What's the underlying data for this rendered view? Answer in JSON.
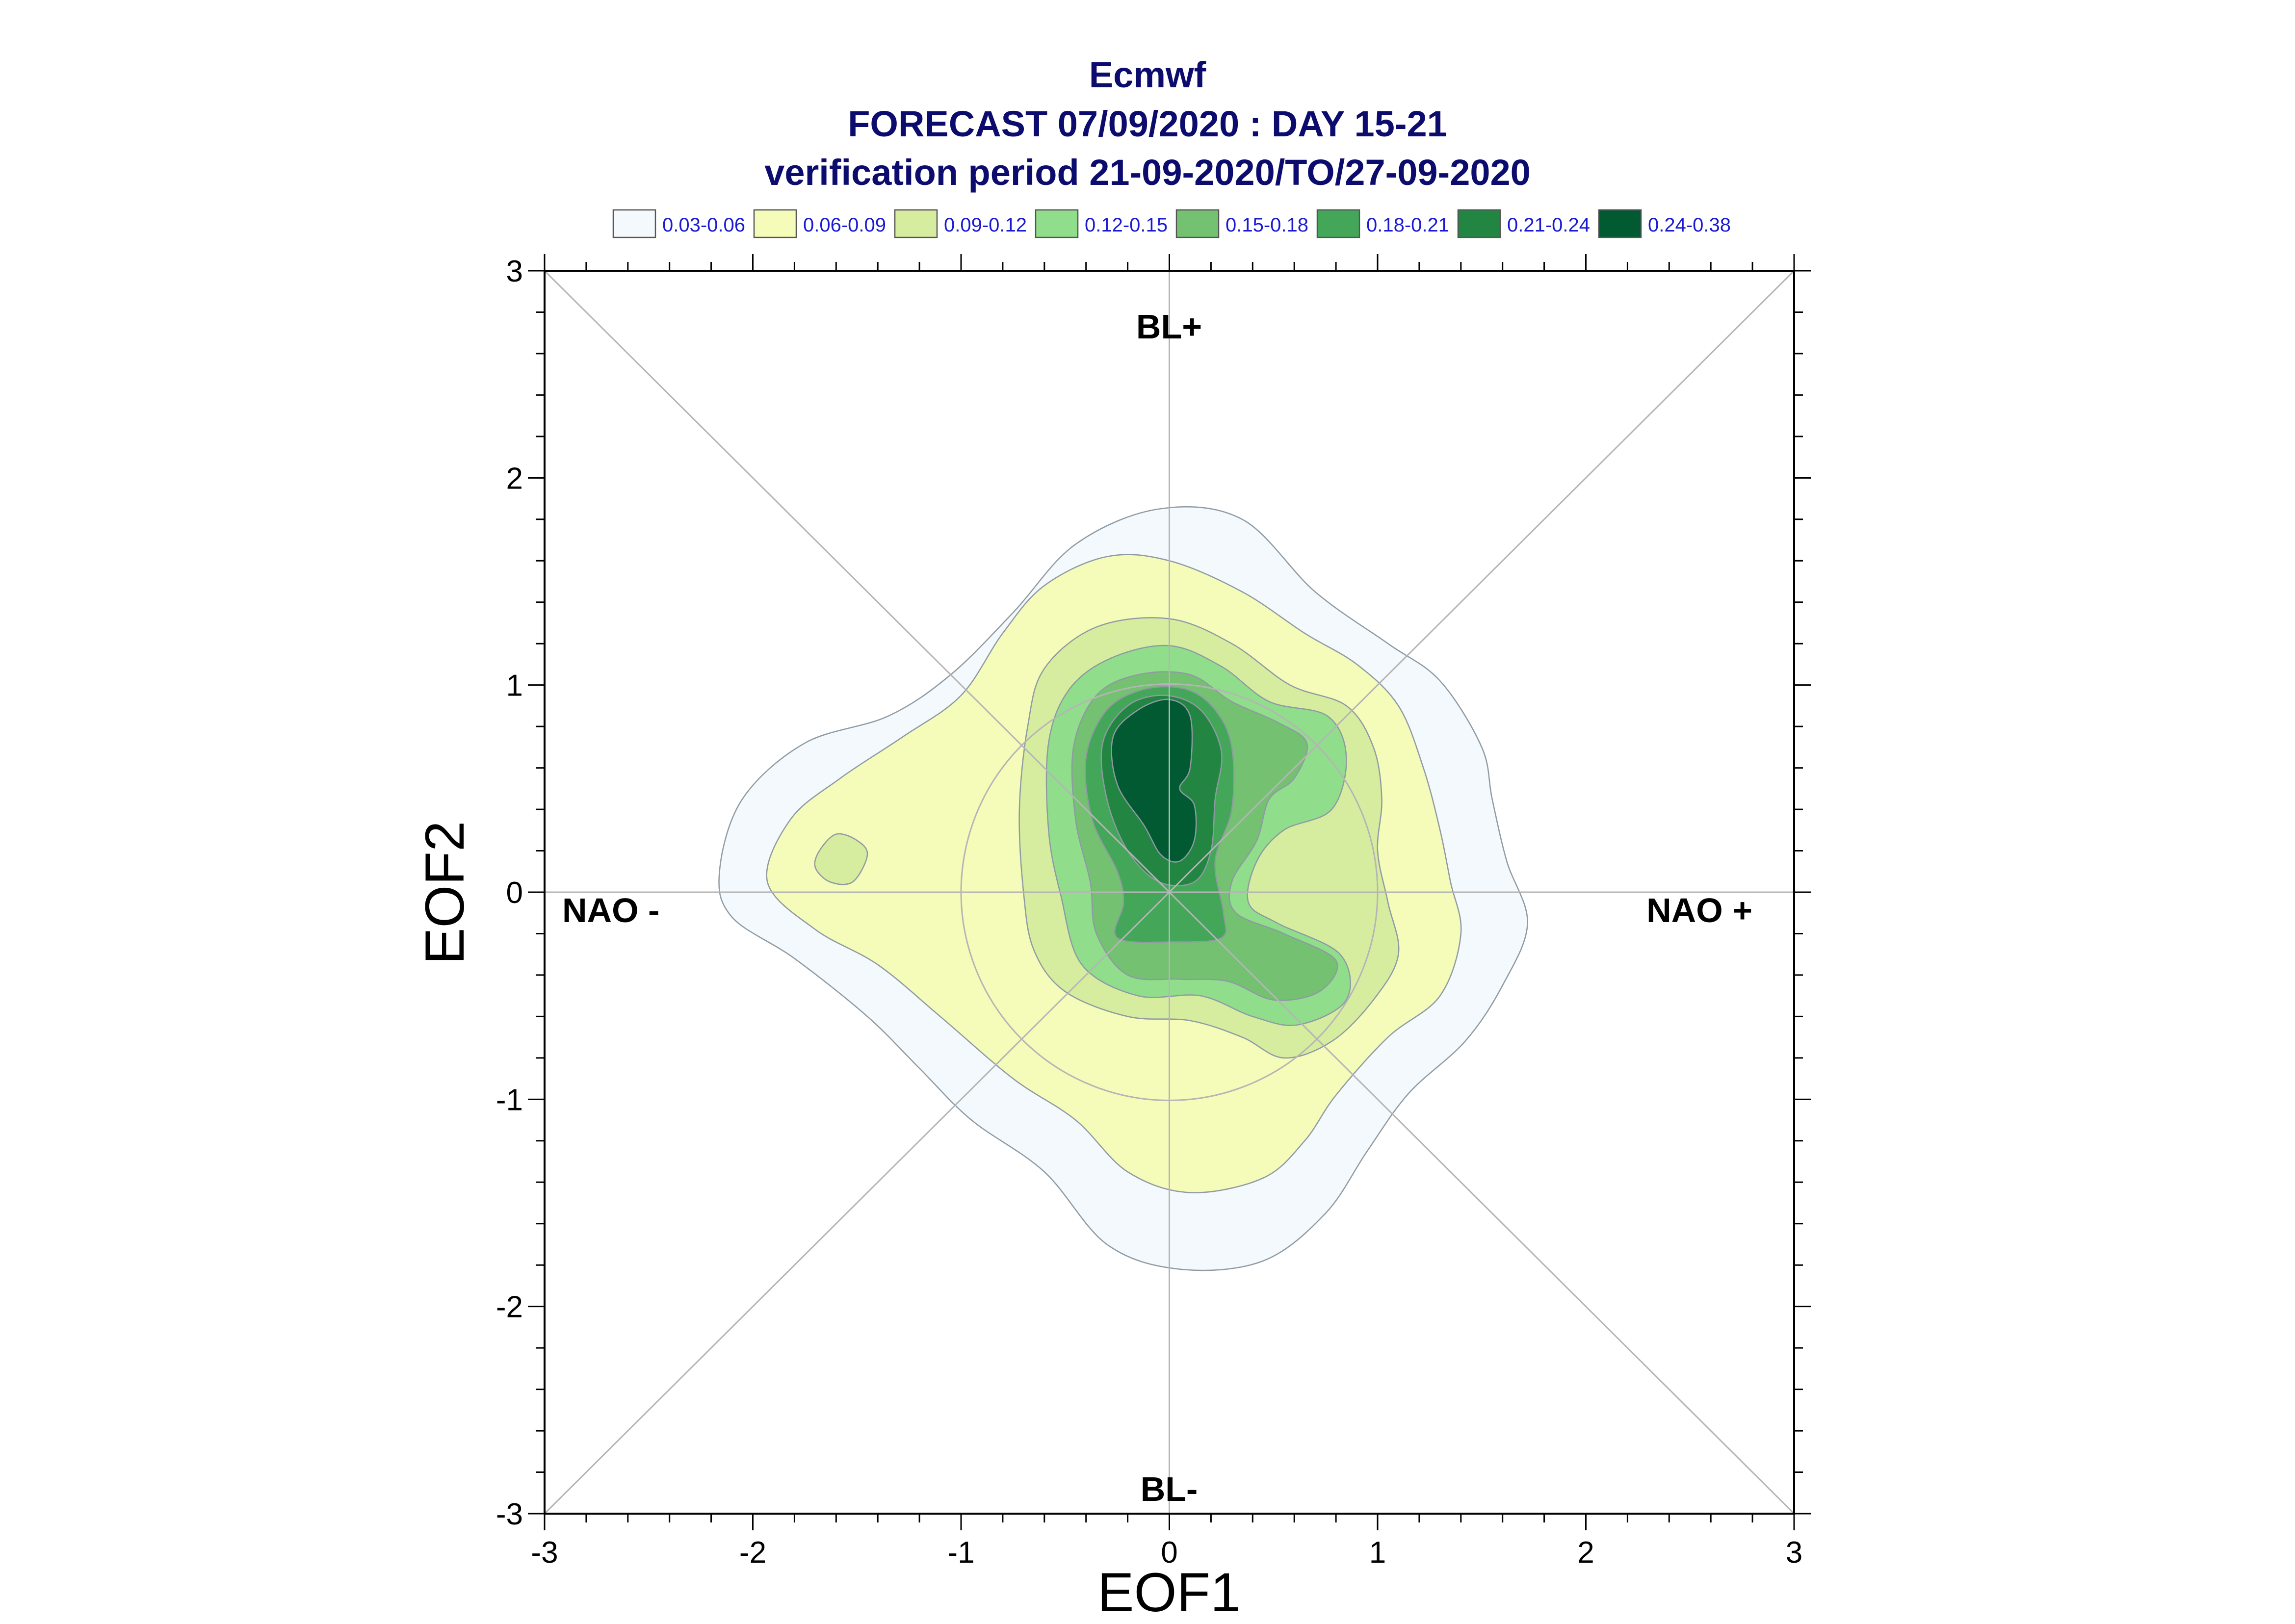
{
  "chart_data": {
    "type": "contour",
    "title": [
      "Ecmwf",
      "FORECAST 07/09/2020 : DAY 15-21",
      "verification period 21-09-2020/TO/27-09-2020"
    ],
    "xlabel": "EOF1",
    "ylabel": "EOF2",
    "xlim": [
      -3,
      3
    ],
    "ylim": [
      -3,
      3
    ],
    "xticks": [
      "-3",
      "-2",
      "-1",
      "0",
      "1",
      "2",
      "3"
    ],
    "yticks": [
      "-3",
      "-2",
      "-1",
      "0",
      "1",
      "2",
      "3"
    ],
    "regime_labels": {
      "top": "BL+",
      "bottom": "BL-",
      "left": "NAO -",
      "right": "NAO +"
    },
    "guide_lines": {
      "diagonals": true,
      "axes_through_origin": true,
      "circle_radii": [
        1
      ]
    },
    "legend": {
      "placement": "top",
      "entries": [
        {
          "label": "0.03-0.06",
          "color": "#f3f9fc"
        },
        {
          "label": "0.06-0.09",
          "color": "#f5fbb9"
        },
        {
          "label": "0.09-0.12",
          "color": "#d6eda0"
        },
        {
          "label": "0.12-0.15",
          "color": "#90dd8b"
        },
        {
          "label": "0.15-0.18",
          "color": "#74c171"
        },
        {
          "label": "0.18-0.21",
          "color": "#44a659"
        },
        {
          "label": "0.21-0.24",
          "color": "#228542"
        },
        {
          "label": "0.24-0.38",
          "color": "#015a32"
        }
      ]
    },
    "density_levels": [
      {
        "level": "0.03-0.06",
        "color": "#f3f9fc",
        "outline": [
          [
            -2.16,
            0.1
          ],
          [
            -2.05,
            0.45
          ],
          [
            -1.75,
            0.72
          ],
          [
            -1.35,
            0.85
          ],
          [
            -1.05,
            1.05
          ],
          [
            -0.75,
            1.35
          ],
          [
            -0.45,
            1.68
          ],
          [
            -0.05,
            1.85
          ],
          [
            0.35,
            1.8
          ],
          [
            0.7,
            1.45
          ],
          [
            1.05,
            1.2
          ],
          [
            1.3,
            1.02
          ],
          [
            1.5,
            0.7
          ],
          [
            1.55,
            0.45
          ],
          [
            1.62,
            0.15
          ],
          [
            1.72,
            -0.15
          ],
          [
            1.6,
            -0.45
          ],
          [
            1.42,
            -0.72
          ],
          [
            1.15,
            -0.97
          ],
          [
            0.95,
            -1.25
          ],
          [
            0.75,
            -1.55
          ],
          [
            0.45,
            -1.78
          ],
          [
            0.05,
            -1.82
          ],
          [
            -0.3,
            -1.7
          ],
          [
            -0.6,
            -1.35
          ],
          [
            -0.95,
            -1.1
          ],
          [
            -1.2,
            -0.85
          ],
          [
            -1.45,
            -0.6
          ],
          [
            -1.8,
            -0.32
          ],
          [
            -2.1,
            -0.12
          ]
        ]
      },
      {
        "level": "0.06-0.09",
        "color": "#f5fbb9",
        "outline": [
          [
            -1.93,
            0.05
          ],
          [
            -1.82,
            0.35
          ],
          [
            -1.58,
            0.55
          ],
          [
            -1.28,
            0.75
          ],
          [
            -1.0,
            0.95
          ],
          [
            -0.8,
            1.25
          ],
          [
            -0.6,
            1.48
          ],
          [
            -0.3,
            1.62
          ],
          [
            0.0,
            1.6
          ],
          [
            0.35,
            1.45
          ],
          [
            0.65,
            1.25
          ],
          [
            0.9,
            1.1
          ],
          [
            1.1,
            0.9
          ],
          [
            1.22,
            0.6
          ],
          [
            1.3,
            0.3
          ],
          [
            1.35,
            0.05
          ],
          [
            1.4,
            -0.2
          ],
          [
            1.3,
            -0.5
          ],
          [
            1.05,
            -0.7
          ],
          [
            0.8,
            -0.98
          ],
          [
            0.65,
            -1.2
          ],
          [
            0.45,
            -1.38
          ],
          [
            0.1,
            -1.45
          ],
          [
            -0.2,
            -1.35
          ],
          [
            -0.45,
            -1.1
          ],
          [
            -0.75,
            -0.9
          ],
          [
            -1.1,
            -0.6
          ],
          [
            -1.4,
            -0.35
          ],
          [
            -1.7,
            -0.18
          ]
        ]
      },
      {
        "level": "0.09-0.12",
        "color": "#d6eda0",
        "outline": [
          [
            -0.7,
            0.0
          ],
          [
            -0.72,
            0.4
          ],
          [
            -0.68,
            0.8
          ],
          [
            -0.6,
            1.08
          ],
          [
            -0.35,
            1.28
          ],
          [
            0.0,
            1.32
          ],
          [
            0.3,
            1.2
          ],
          [
            0.58,
            1.0
          ],
          [
            0.85,
            0.9
          ],
          [
            0.98,
            0.7
          ],
          [
            1.02,
            0.45
          ],
          [
            1.0,
            0.2
          ],
          [
            1.05,
            -0.05
          ],
          [
            1.1,
            -0.3
          ],
          [
            0.98,
            -0.52
          ],
          [
            0.78,
            -0.72
          ],
          [
            0.55,
            -0.8
          ],
          [
            0.35,
            -0.7
          ],
          [
            0.1,
            -0.62
          ],
          [
            -0.2,
            -0.6
          ],
          [
            -0.5,
            -0.48
          ],
          [
            -0.65,
            -0.28
          ]
        ]
      },
      {
        "level": "0.09-0.12",
        "color": "#d6eda0",
        "outline": [
          [
            -1.68,
            0.2
          ],
          [
            -1.6,
            0.28
          ],
          [
            -1.5,
            0.25
          ],
          [
            -1.45,
            0.18
          ],
          [
            -1.52,
            0.05
          ],
          [
            -1.63,
            0.05
          ],
          [
            -1.7,
            0.12
          ]
        ]
      },
      {
        "level": "0.12-0.15",
        "color": "#90dd8b",
        "outline": [
          [
            -0.52,
            -0.02
          ],
          [
            -0.58,
            0.3
          ],
          [
            -0.58,
            0.72
          ],
          [
            -0.48,
            0.98
          ],
          [
            -0.28,
            1.13
          ],
          [
            0.0,
            1.19
          ],
          [
            0.25,
            1.09
          ],
          [
            0.48,
            0.92
          ],
          [
            0.76,
            0.85
          ],
          [
            0.85,
            0.65
          ],
          [
            0.78,
            0.4
          ],
          [
            0.55,
            0.3
          ],
          [
            0.42,
            0.15
          ],
          [
            0.38,
            -0.05
          ],
          [
            0.52,
            -0.15
          ],
          [
            0.82,
            -0.3
          ],
          [
            0.85,
            -0.52
          ],
          [
            0.62,
            -0.64
          ],
          [
            0.4,
            -0.6
          ],
          [
            0.15,
            -0.5
          ],
          [
            -0.15,
            -0.5
          ],
          [
            -0.42,
            -0.35
          ]
        ]
      },
      {
        "level": "0.15-0.18",
        "color": "#74c171",
        "outline": [
          [
            -0.38,
            0.05
          ],
          [
            -0.45,
            0.35
          ],
          [
            -0.46,
            0.7
          ],
          [
            -0.35,
            0.95
          ],
          [
            -0.15,
            1.05
          ],
          [
            0.1,
            1.05
          ],
          [
            0.3,
            0.92
          ],
          [
            0.52,
            0.82
          ],
          [
            0.66,
            0.72
          ],
          [
            0.6,
            0.55
          ],
          [
            0.48,
            0.45
          ],
          [
            0.42,
            0.25
          ],
          [
            0.3,
            0.05
          ],
          [
            0.32,
            -0.1
          ],
          [
            0.55,
            -0.2
          ],
          [
            0.8,
            -0.33
          ],
          [
            0.72,
            -0.48
          ],
          [
            0.5,
            -0.52
          ],
          [
            0.28,
            -0.43
          ],
          [
            0.05,
            -0.42
          ],
          [
            -0.2,
            -0.4
          ],
          [
            -0.35,
            -0.2
          ]
        ]
      },
      {
        "level": "0.18-0.21",
        "color": "#44a659",
        "outline": [
          [
            -0.25,
            0.1
          ],
          [
            -0.37,
            0.35
          ],
          [
            -0.4,
            0.65
          ],
          [
            -0.3,
            0.88
          ],
          [
            -0.12,
            0.98
          ],
          [
            0.08,
            0.98
          ],
          [
            0.22,
            0.88
          ],
          [
            0.3,
            0.7
          ],
          [
            0.3,
            0.4
          ],
          [
            0.22,
            0.15
          ],
          [
            0.26,
            -0.1
          ],
          [
            0.25,
            -0.22
          ],
          [
            0.02,
            -0.24
          ],
          [
            -0.25,
            -0.22
          ],
          [
            -0.22,
            -0.05
          ]
        ]
      },
      {
        "level": "0.21-0.24",
        "color": "#228542",
        "outline": [
          [
            -0.2,
            0.2
          ],
          [
            -0.3,
            0.45
          ],
          [
            -0.32,
            0.72
          ],
          [
            -0.2,
            0.9
          ],
          [
            -0.02,
            0.95
          ],
          [
            0.15,
            0.88
          ],
          [
            0.25,
            0.68
          ],
          [
            0.22,
            0.45
          ],
          [
            0.2,
            0.2
          ],
          [
            0.12,
            0.05
          ],
          [
            -0.05,
            0.05
          ]
        ]
      },
      {
        "level": "0.24-0.38",
        "color": "#015a32",
        "outline": [
          [
            -0.12,
            0.32
          ],
          [
            -0.25,
            0.52
          ],
          [
            -0.27,
            0.75
          ],
          [
            -0.15,
            0.88
          ],
          [
            0.0,
            0.93
          ],
          [
            0.1,
            0.85
          ],
          [
            0.1,
            0.6
          ],
          [
            0.05,
            0.5
          ],
          [
            0.12,
            0.42
          ],
          [
            0.12,
            0.25
          ],
          [
            0.05,
            0.15
          ],
          [
            -0.04,
            0.18
          ]
        ]
      }
    ]
  }
}
